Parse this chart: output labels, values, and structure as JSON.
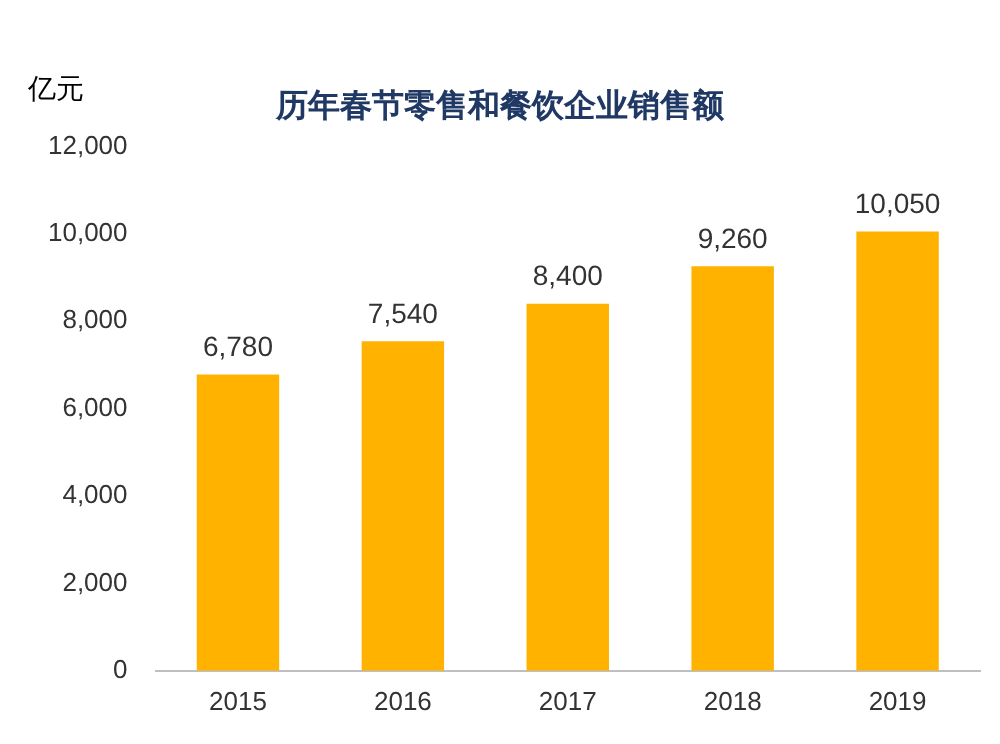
{
  "chart_data": {
    "type": "bar",
    "title": "历年春节零售和餐饮企业销售额",
    "ylabel": "亿元",
    "categories": [
      "2015",
      "2016",
      "2017",
      "2018",
      "2019"
    ],
    "values": [
      6780,
      7540,
      8400,
      9260,
      10050
    ],
    "value_labels": [
      "6,780",
      "7,540",
      "8,400",
      "9,260",
      "10,050"
    ],
    "color": "#ffb300",
    "ylim": [
      0,
      12000
    ],
    "yticks": [
      {
        "value": 0,
        "label": "0"
      },
      {
        "value": 2000,
        "label": "2,000"
      },
      {
        "value": 4000,
        "label": "4,000"
      },
      {
        "value": 6000,
        "label": "6,000"
      },
      {
        "value": 8000,
        "label": "8,000"
      },
      {
        "value": 10000,
        "label": "10,000"
      },
      {
        "value": 12000,
        "label": "12,000"
      }
    ],
    "grid": false,
    "legend": false
  }
}
